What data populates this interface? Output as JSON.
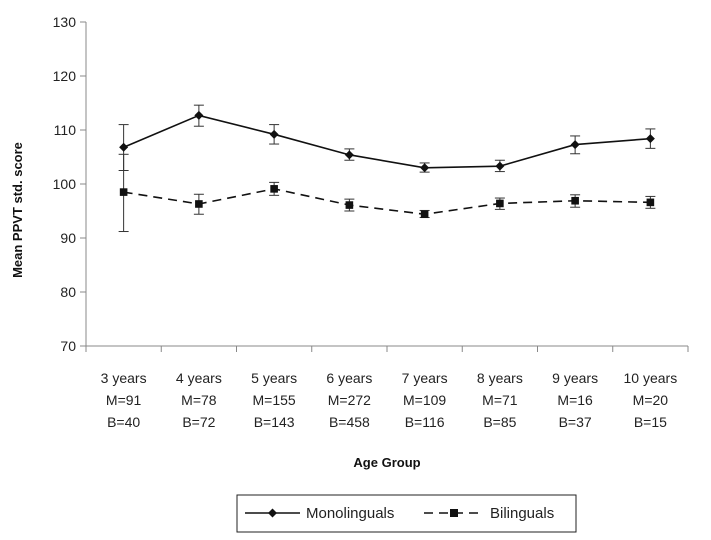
{
  "chart_data": {
    "type": "line",
    "xlabel": "Age Group",
    "ylabel": "Mean PPVT std. score",
    "ylim": [
      70,
      130
    ],
    "yticks": [
      70,
      80,
      90,
      100,
      110,
      120,
      130
    ],
    "grid": false,
    "legend_position": "bottom",
    "categories": [
      {
        "label": "3 years",
        "m": "M=91",
        "b": "B=40"
      },
      {
        "label": "4 years",
        "m": "M=78",
        "b": "B=72"
      },
      {
        "label": "5 years",
        "m": "M=155",
        "b": "B=143"
      },
      {
        "label": "6 years",
        "m": "M=272",
        "b": "B=458"
      },
      {
        "label": "7 years",
        "m": "M=109",
        "b": "B=116"
      },
      {
        "label": "8 years",
        "m": "M=71",
        "b": "B=85"
      },
      {
        "label": "9 years",
        "m": "M=16",
        "b": "B=37"
      },
      {
        "label": "10 years",
        "m": "M=20",
        "b": "B=15"
      }
    ],
    "series": [
      {
        "name": "Monolinguals",
        "marker": "diamond",
        "line_style": "solid",
        "values": [
          106.8,
          112.7,
          109.2,
          105.4,
          103.0,
          103.3,
          107.3,
          108.4
        ],
        "error_low": [
          102.5,
          110.7,
          107.4,
          104.4,
          102.2,
          102.3,
          105.6,
          106.6
        ],
        "error_high": [
          111.0,
          114.6,
          111.0,
          106.5,
          103.9,
          104.4,
          108.9,
          110.2
        ]
      },
      {
        "name": "Bilinguals",
        "marker": "square",
        "line_style": "dashed",
        "values": [
          98.5,
          96.3,
          99.1,
          96.1,
          94.4,
          96.4,
          96.9,
          96.6
        ],
        "error_low": [
          91.2,
          94.4,
          97.9,
          95.0,
          93.8,
          95.3,
          95.7,
          95.5
        ],
        "error_high": [
          105.5,
          98.1,
          100.3,
          97.2,
          95.1,
          97.4,
          98.0,
          97.7
        ]
      }
    ]
  }
}
